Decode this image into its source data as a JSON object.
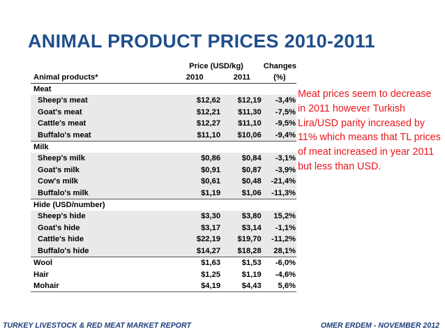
{
  "title": "ANIMAL PRODUCT PRICES 2010-2011",
  "table": {
    "header": {
      "price_label": "Price (USD/kg)",
      "changes_label": "Changes",
      "name_col": "Animal products*",
      "year1": "2010",
      "year2": "2011",
      "pct": "(%)"
    },
    "groups": [
      {
        "name": "Meat",
        "rows": [
          {
            "name": "Sheep's meat",
            "y2010": "$12,62",
            "y2011": "$12,19",
            "change": "-3,4%"
          },
          {
            "name": "Goat's meat",
            "y2010": "$12,21",
            "y2011": "$11,30",
            "change": "-7,5%"
          },
          {
            "name": "Cattle's meat",
            "y2010": "$12,27",
            "y2011": "$11,10",
            "change": "-9,5%"
          },
          {
            "name": "Buffalo's meat",
            "y2010": "$11,10",
            "y2011": "$10,06",
            "change": "-9,4%"
          }
        ]
      },
      {
        "name": "Milk",
        "rows": [
          {
            "name": "Sheep's milk",
            "y2010": "$0,86",
            "y2011": "$0,84",
            "change": "-3,1%"
          },
          {
            "name": "Goat's milk",
            "y2010": "$0,91",
            "y2011": "$0,87",
            "change": "-3,9%"
          },
          {
            "name": "Cow's milk",
            "y2010": "$0,61",
            "y2011": "$0,48",
            "change": "-21,4%"
          },
          {
            "name": "Buffalo's milk",
            "y2010": "$1,19",
            "y2011": "$1,06",
            "change": "-11,3%"
          }
        ]
      },
      {
        "name": "Hide (USD/number)",
        "rows": [
          {
            "name": "Sheep's hide",
            "y2010": "$3,30",
            "y2011": "$3,80",
            "change": "15,2%"
          },
          {
            "name": "Goat's hide",
            "y2010": "$3,17",
            "y2011": "$3,14",
            "change": "-1,1%"
          },
          {
            "name": "Cattle's hide",
            "y2010": "$22,19",
            "y2011": "$19,70",
            "change": "-11,2%"
          },
          {
            "name": "Buffalo's hide",
            "y2010": "$14,27",
            "y2011": "$18,28",
            "change": "28,1%"
          }
        ]
      }
    ],
    "others": [
      {
        "name": "Wool",
        "y2010": "$1,63",
        "y2011": "$1,53",
        "change": "-6,0%"
      },
      {
        "name": "Hair",
        "y2010": "$1,25",
        "y2011": "$1,19",
        "change": "-4,6%"
      },
      {
        "name": "Mohair",
        "y2010": "$4,19",
        "y2011": "$4,43",
        "change": "5,6%"
      }
    ]
  },
  "note": "Meat prices seem to decrease in 2011 however Turkish Lira/USD parity increased by 11% which means that TL prices of meat increased in year 2011 but less than USD.",
  "footer": {
    "left": "TURKEY LIVESTOCK & RED MEAT MARKET REPORT",
    "right": "OMER ERDEM - NOVEMBER 2012"
  },
  "colors": {
    "title": "#1f4e8c",
    "note": "#e8161b",
    "footer": "#1f3f7a",
    "row_shade": "#e9e9e9"
  }
}
